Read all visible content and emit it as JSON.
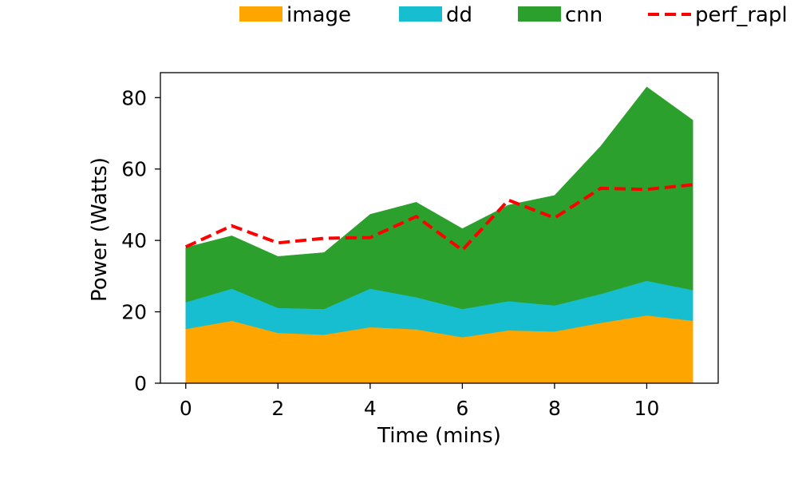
{
  "chart_data": {
    "type": "area",
    "x": [
      0,
      1,
      2,
      3,
      4,
      5,
      6,
      7,
      8,
      9,
      10,
      11
    ],
    "xlabel": "Time (mins)",
    "ylabel": "Power (Watts)",
    "xlim": [
      -0.55,
      11.55
    ],
    "ylim": [
      0,
      87
    ],
    "xticks": [
      0,
      2,
      4,
      6,
      8,
      10
    ],
    "yticks": [
      0,
      20,
      40,
      60,
      80
    ],
    "grid": false,
    "legend_position": "top",
    "stacked": true,
    "series": [
      {
        "name": "image",
        "kind": "area",
        "color": "#ffa500",
        "values": [
          15.2,
          17.5,
          14.1,
          13.6,
          15.7,
          15.1,
          12.9,
          14.8,
          14.5,
          16.9,
          19.0,
          17.5
        ]
      },
      {
        "name": "dd",
        "kind": "area",
        "color": "#17becf",
        "values": [
          7.5,
          9.0,
          7.0,
          7.2,
          10.8,
          9.0,
          7.9,
          8.2,
          7.3,
          8.1,
          9.7,
          8.6
        ]
      },
      {
        "name": "cnn",
        "kind": "area",
        "color": "#2ca02c",
        "values": [
          15.3,
          14.8,
          14.4,
          15.8,
          20.8,
          26.6,
          22.5,
          26.9,
          30.8,
          41.4,
          54.3,
          47.6
        ]
      },
      {
        "name": "perf_rapl",
        "kind": "line",
        "color": "#ff0000",
        "dashed": true,
        "values": [
          38.2,
          44.1,
          39.3,
          40.6,
          40.8,
          46.7,
          37.3,
          51.3,
          46.3,
          54.6,
          54.3,
          55.6
        ]
      }
    ]
  }
}
